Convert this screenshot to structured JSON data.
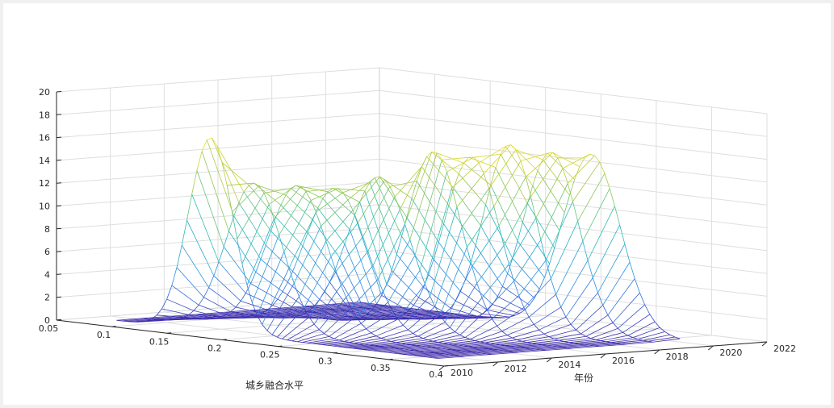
{
  "chart_data": {
    "type": "surface",
    "title": "",
    "xlabel": "城乡融合水平",
    "ylabel": "年份",
    "zlabel": "",
    "xlim": [
      0.05,
      0.4
    ],
    "ylim": [
      2010,
      2022
    ],
    "zlim": [
      0,
      20
    ],
    "x_ticks": [
      "0.05",
      "0.1",
      "0.15",
      "0.2",
      "0.25",
      "0.3",
      "0.35",
      "0.4"
    ],
    "y_ticks": [
      "2010",
      "2012",
      "2014",
      "2016",
      "2018",
      "2020",
      "2022"
    ],
    "z_ticks": [
      "0",
      "2",
      "4",
      "6",
      "8",
      "10",
      "12",
      "14",
      "16",
      "18",
      "20"
    ],
    "grid": true,
    "colormap": "parula",
    "years": [
      2011,
      2012,
      2013,
      2014,
      2015,
      2016,
      2017,
      2018,
      2019,
      2020
    ],
    "series": [
      {
        "year": 2011,
        "peaks": [
          {
            "center": 0.165,
            "height": 17.0,
            "width": 0.02
          }
        ]
      },
      {
        "year": 2012,
        "peaks": [
          {
            "center": 0.18,
            "height": 13.0,
            "width": 0.025
          }
        ]
      },
      {
        "year": 2013,
        "peaks": [
          {
            "center": 0.195,
            "height": 12.8,
            "width": 0.027
          }
        ]
      },
      {
        "year": 2014,
        "peaks": [
          {
            "center": 0.205,
            "height": 12.5,
            "width": 0.028
          }
        ]
      },
      {
        "year": 2015,
        "peaks": [
          {
            "center": 0.22,
            "height": 13.5,
            "width": 0.028
          }
        ]
      },
      {
        "year": 2016,
        "peaks": [
          {
            "center": 0.245,
            "height": 15.8,
            "width": 0.025
          }
        ]
      },
      {
        "year": 2017,
        "peaks": [
          {
            "center": 0.255,
            "height": 15.3,
            "width": 0.025
          }
        ]
      },
      {
        "year": 2018,
        "peaks": [
          {
            "center": 0.265,
            "height": 16.3,
            "width": 0.024
          }
        ]
      },
      {
        "year": 2019,
        "peaks": [
          {
            "center": 0.278,
            "height": 15.6,
            "width": 0.025
          }
        ]
      },
      {
        "year": 2020,
        "peaks": [
          {
            "center": 0.29,
            "height": 15.4,
            "width": 0.026
          }
        ]
      }
    ]
  }
}
